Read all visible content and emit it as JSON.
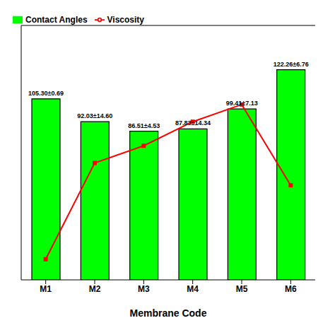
{
  "chart_data": {
    "type": "bar",
    "xlabel": "Membrane Code",
    "categories": [
      "M1",
      "M2",
      "M3",
      "M4",
      "M5",
      "M6"
    ],
    "series": [
      {
        "name": "Contact Angles",
        "type": "bar",
        "color": "#00FF00",
        "values": [
          105.3,
          92.03,
          86.51,
          87.83,
          99.41,
          122.26
        ],
        "value_labels": [
          "105.30±0.69",
          "92.03±14.60",
          "86.51±4.53",
          "87.83±14.34",
          "99.41±7.13",
          "122.26±6.76"
        ]
      },
      {
        "name": "Viscosity",
        "type": "line",
        "color": "#FF0000",
        "marker": "square",
        "values": [
          12,
          68,
          78,
          92,
          102,
          55
        ]
      }
    ],
    "ylim": [
      0,
      148
    ],
    "grid": false,
    "legend": "upper left",
    "tick_labels": "x"
  }
}
